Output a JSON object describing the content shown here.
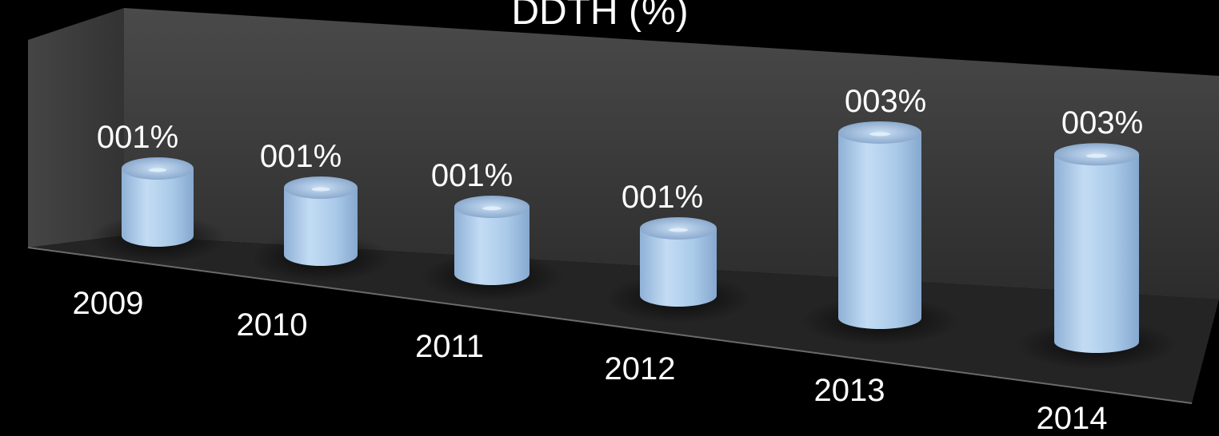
{
  "chart_data": {
    "type": "bar",
    "style": "3d-cylinder",
    "title": "DDTH (%)",
    "categories": [
      "2009",
      "2010",
      "2011",
      "2012",
      "2013",
      "2014"
    ],
    "values": [
      1,
      1,
      1,
      1,
      3,
      3
    ],
    "data_labels": [
      "001%",
      "001%",
      "001%",
      "001%",
      "003%",
      "003%"
    ],
    "unit": "%",
    "grid": false,
    "legend": "none"
  },
  "colors": {
    "background": "#000000",
    "wall": "#3a3a3a",
    "floor": "#262626",
    "bar": "#a9c6e6",
    "text": "#ffffff"
  }
}
